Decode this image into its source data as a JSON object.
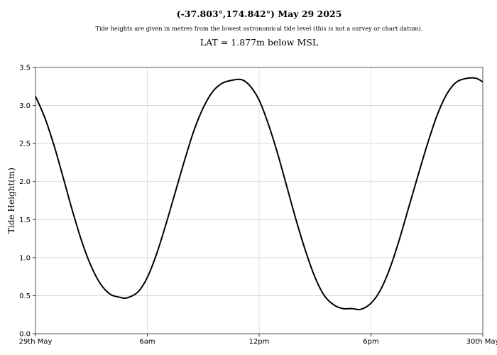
{
  "header": {
    "title": "(-37.803°,174.842°) May 29 2025",
    "subtitle": "Tide heights are given in metres from the lowest astronomical tide level (this is not a survey or chart datum).",
    "lat_note": "LAT = 1.877m below MSL"
  },
  "chart_data": {
    "type": "line",
    "title": "(-37.803°,174.842°) May 29 2025",
    "xlabel": "",
    "ylabel": "Tide Height(m)",
    "xlim": [
      0,
      24
    ],
    "ylim": [
      0,
      3.5
    ],
    "x_unit": "hours from 29th May 00:00",
    "grid": true,
    "x_ticks": [
      {
        "value": 0,
        "label": "29th May"
      },
      {
        "value": 6,
        "label": "6am"
      },
      {
        "value": 12,
        "label": "12pm"
      },
      {
        "value": 18,
        "label": "6pm"
      },
      {
        "value": 24,
        "label": "30th May"
      }
    ],
    "y_ticks": [
      0,
      0.5,
      1.0,
      1.5,
      2.0,
      2.5,
      3.0,
      3.5
    ],
    "y_tick_labels": [
      "0.0",
      "0.5",
      "1.0",
      "1.5",
      "2.0",
      "2.5",
      "3.0",
      "3.5"
    ],
    "extrema": [
      {
        "kind": "start",
        "hour": 0.0,
        "height": 3.12
      },
      {
        "kind": "low",
        "hour": 4.9,
        "height": 0.47
      },
      {
        "kind": "high",
        "hour": 11.05,
        "height": 3.34
      },
      {
        "kind": "low",
        "hour": 17.45,
        "height": 0.32
      },
      {
        "kind": "high",
        "hour": 23.6,
        "height": 3.36
      },
      {
        "kind": "end",
        "hour": 24.0,
        "height": 3.31
      }
    ],
    "series": [
      {
        "color": "#000000",
        "x": [
          0,
          0.5,
          1,
          1.5,
          2,
          2.5,
          3,
          3.5,
          4,
          4.5,
          4.9,
          5.5,
          6,
          6.5,
          7,
          7.5,
          8,
          8.5,
          9,
          9.5,
          10,
          10.5,
          11.05,
          11.5,
          12,
          12.5,
          13,
          13.5,
          14,
          14.5,
          15,
          15.5,
          16,
          16.5,
          17,
          17.45,
          18,
          18.5,
          19,
          19.5,
          20,
          20.5,
          21,
          21.5,
          22,
          22.5,
          23,
          23.6,
          24
        ],
        "y": [
          3.12,
          2.84,
          2.47,
          2.04,
          1.6,
          1.2,
          0.88,
          0.65,
          0.52,
          0.48,
          0.47,
          0.55,
          0.74,
          1.05,
          1.44,
          1.86,
          2.28,
          2.67,
          2.97,
          3.18,
          3.29,
          3.33,
          3.34,
          3.26,
          3.07,
          2.75,
          2.36,
          1.92,
          1.48,
          1.08,
          0.74,
          0.5,
          0.38,
          0.33,
          0.33,
          0.32,
          0.4,
          0.57,
          0.85,
          1.22,
          1.64,
          2.06,
          2.47,
          2.84,
          3.12,
          3.29,
          3.35,
          3.36,
          3.31
        ]
      }
    ]
  }
}
